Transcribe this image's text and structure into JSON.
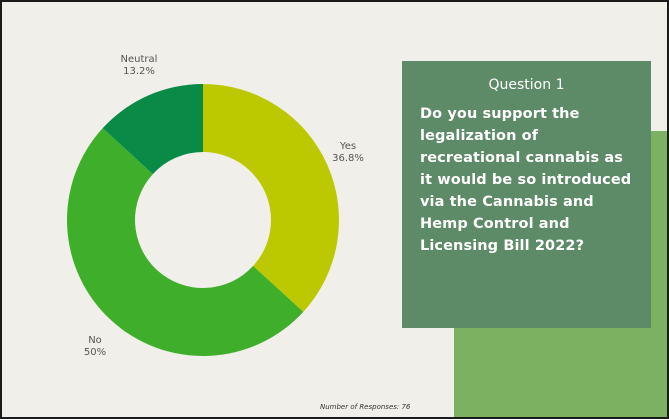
{
  "chart_data": {
    "type": "donut",
    "slices": [
      {
        "label": "Yes",
        "percent_label": "36.8%",
        "value": 36.8,
        "color": "#bcc900"
      },
      {
        "label": "No",
        "percent_label": "50%",
        "value": 50.0,
        "color": "#3faf2b"
      },
      {
        "label": "Neutral",
        "percent_label": "13.2%",
        "value": 13.2,
        "color": "#0a8a47"
      }
    ]
  },
  "question": {
    "heading": "Question 1",
    "text": "Do you support the legalization of recreational cannabis as it would be so introduced via the Cannabis and Hemp Control and Licensing Bill 2022?"
  },
  "footer": {
    "responses_label": "Number of Responses: 76"
  },
  "colors": {
    "background": "#f1efea",
    "card": "#5d8a67",
    "accent": "#7cb161"
  }
}
